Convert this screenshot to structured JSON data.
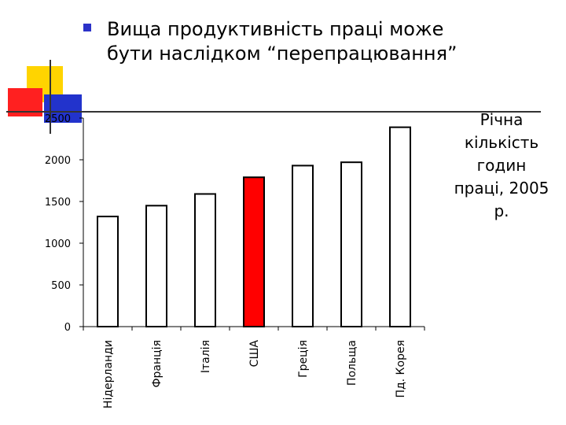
{
  "slide": {
    "bullet_lines": [
      "Вища продуктивність праці може",
      "бути наслідком “перепрацювання”"
    ],
    "side_note_lines": [
      "Річна",
      "кількість",
      "годин",
      "праці, 2005",
      "р."
    ],
    "colors": {
      "accent_bullet": "#2b32c8",
      "highlight_bar": "#ff0000",
      "bar_fill": "#ffffff",
      "deco_yellow": "#ffd400",
      "deco_red": "#ff2020",
      "deco_blue": "#2233cc"
    }
  },
  "chart_data": {
    "type": "bar",
    "categories": [
      "Нідерланди",
      "Франція",
      "Італія",
      "США",
      "Греція",
      "Польща",
      "Пд. Корея"
    ],
    "values": [
      1320,
      1450,
      1590,
      1790,
      1930,
      1970,
      2390
    ],
    "highlight_index": 3,
    "ylim": [
      0,
      2500
    ],
    "yticks": [
      0,
      500,
      1000,
      1500,
      2000,
      2500
    ],
    "title": "",
    "xlabel": "",
    "ylabel": "",
    "grid": false,
    "legend": "none"
  }
}
